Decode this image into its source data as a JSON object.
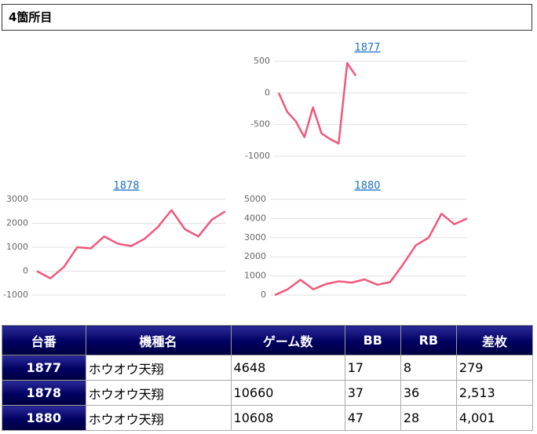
{
  "header": {
    "title": "4箇所目"
  },
  "chart_data": [
    {
      "type": "line",
      "title": "1877",
      "color": "#f2577a",
      "grid": true,
      "categories": [
        null,
        null,
        null,
        null,
        null,
        null,
        null,
        null,
        null,
        null,
        null,
        null,
        null,
        null,
        null,
        null,
        null,
        null,
        null,
        null,
        null,
        null,
        null
      ],
      "values": [
        0,
        -300,
        -450,
        -700,
        -230,
        -640,
        -730,
        -800,
        470,
        270,
        null,
        null,
        null,
        null,
        null,
        null,
        null,
        null,
        null,
        null,
        null,
        null,
        null
      ],
      "ylim": [
        -1000,
        500
      ],
      "yticks": [
        -1000,
        -500,
        0,
        500
      ]
    },
    {
      "type": "line",
      "title": "1878",
      "color": "#f2577a",
      "grid": true,
      "categories": [
        null,
        null,
        null,
        null,
        null,
        null,
        null,
        null,
        null,
        null,
        null,
        null,
        null,
        null,
        null
      ],
      "values": [
        0,
        -300,
        170,
        1000,
        950,
        1450,
        1150,
        1050,
        1350,
        1850,
        2550,
        1750,
        1450,
        2150,
        2500
      ],
      "ylim": [
        -1000,
        3000
      ],
      "yticks": [
        -1000,
        0,
        1000,
        2000,
        3000
      ]
    },
    {
      "type": "line",
      "title": "1880",
      "color": "#f2577a",
      "grid": true,
      "categories": [
        null,
        null,
        null,
        null,
        null,
        null,
        null,
        null,
        null,
        null,
        null,
        null,
        null,
        null,
        null,
        null
      ],
      "values": [
        0,
        300,
        800,
        300,
        580,
        720,
        650,
        820,
        540,
        680,
        1600,
        2600,
        3000,
        4250,
        3700,
        4000
      ],
      "ylim": [
        0,
        5000
      ],
      "yticks": [
        0,
        1000,
        2000,
        3000,
        4000,
        5000
      ]
    }
  ],
  "table": {
    "header": [
      "台番",
      "機種名",
      "ゲーム数",
      "BB",
      "RB",
      "差枚"
    ],
    "rows": [
      [
        "1877",
        "ホウオウ天翔",
        4648,
        17,
        8,
        279
      ],
      [
        "1878",
        "ホウオウ天翔",
        10660,
        37,
        36,
        "2,513"
      ],
      [
        "1880",
        "ホウオウ天翔",
        10608,
        47,
        28,
        "4,001"
      ]
    ]
  }
}
